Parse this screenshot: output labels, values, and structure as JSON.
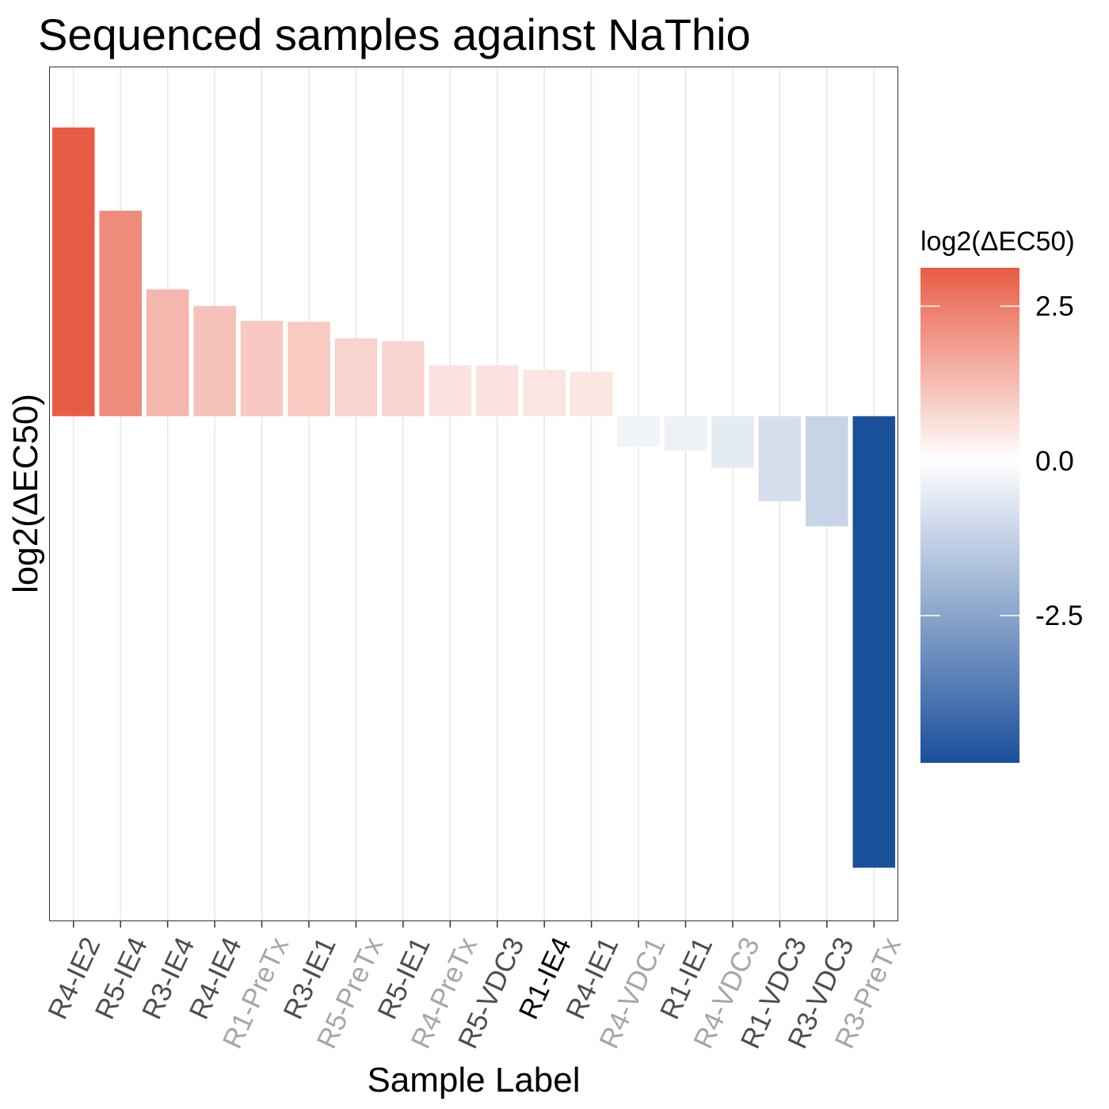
{
  "chart_data": {
    "type": "bar",
    "title": "Sequenced samples against NaThio",
    "xlabel": "Sample Label",
    "ylabel": "log2(ΔEC50)",
    "categories": [
      "R4-IE2",
      "R5-IE4",
      "R3-IE4",
      "R4-IE4",
      "R1-PreTx",
      "R3-IE1",
      "R5-PreTx",
      "R5-IE1",
      "R4-PreTx",
      "R5-VDC3",
      "R1-IE4",
      "R4-IE1",
      "R4-VDC1",
      "R1-IE1",
      "R4-VDC3",
      "R1-VDC3",
      "R3-VDC3",
      "R3-PreTx"
    ],
    "values": [
      3.12,
      2.22,
      1.37,
      1.19,
      1.03,
      1.02,
      0.84,
      0.81,
      0.55,
      0.55,
      0.5,
      0.48,
      -0.33,
      -0.37,
      -0.56,
      -0.92,
      -1.19,
      -4.88
    ],
    "label_colors": [
      "#4d4d4d",
      "#4d4d4d",
      "#4d4d4d",
      "#4d4d4d",
      "#a6a6a6",
      "#4d4d4d",
      "#a6a6a6",
      "#4d4d4d",
      "#a6a6a6",
      "#4d4d4d",
      "#000000",
      "#4d4d4d",
      "#a6a6a6",
      "#4d4d4d",
      "#a6a6a6",
      "#4d4d4d",
      "#4d4d4d",
      "#a6a6a6"
    ],
    "ylim": [
      -5.45,
      3.77
    ],
    "y_ticks_shown": false,
    "grid": "vertical-major",
    "legend": {
      "title": "log2(ΔEC50)",
      "position": "right",
      "ticks": [
        2.5,
        0.0,
        -2.5
      ],
      "tick_labels": [
        "2.5",
        "0.0",
        "-2.5"
      ],
      "range": [
        -4.88,
        3.12
      ],
      "colors": {
        "low": "#1a4f9a",
        "mid": "#ffffff",
        "high": "#e85c45"
      }
    }
  }
}
